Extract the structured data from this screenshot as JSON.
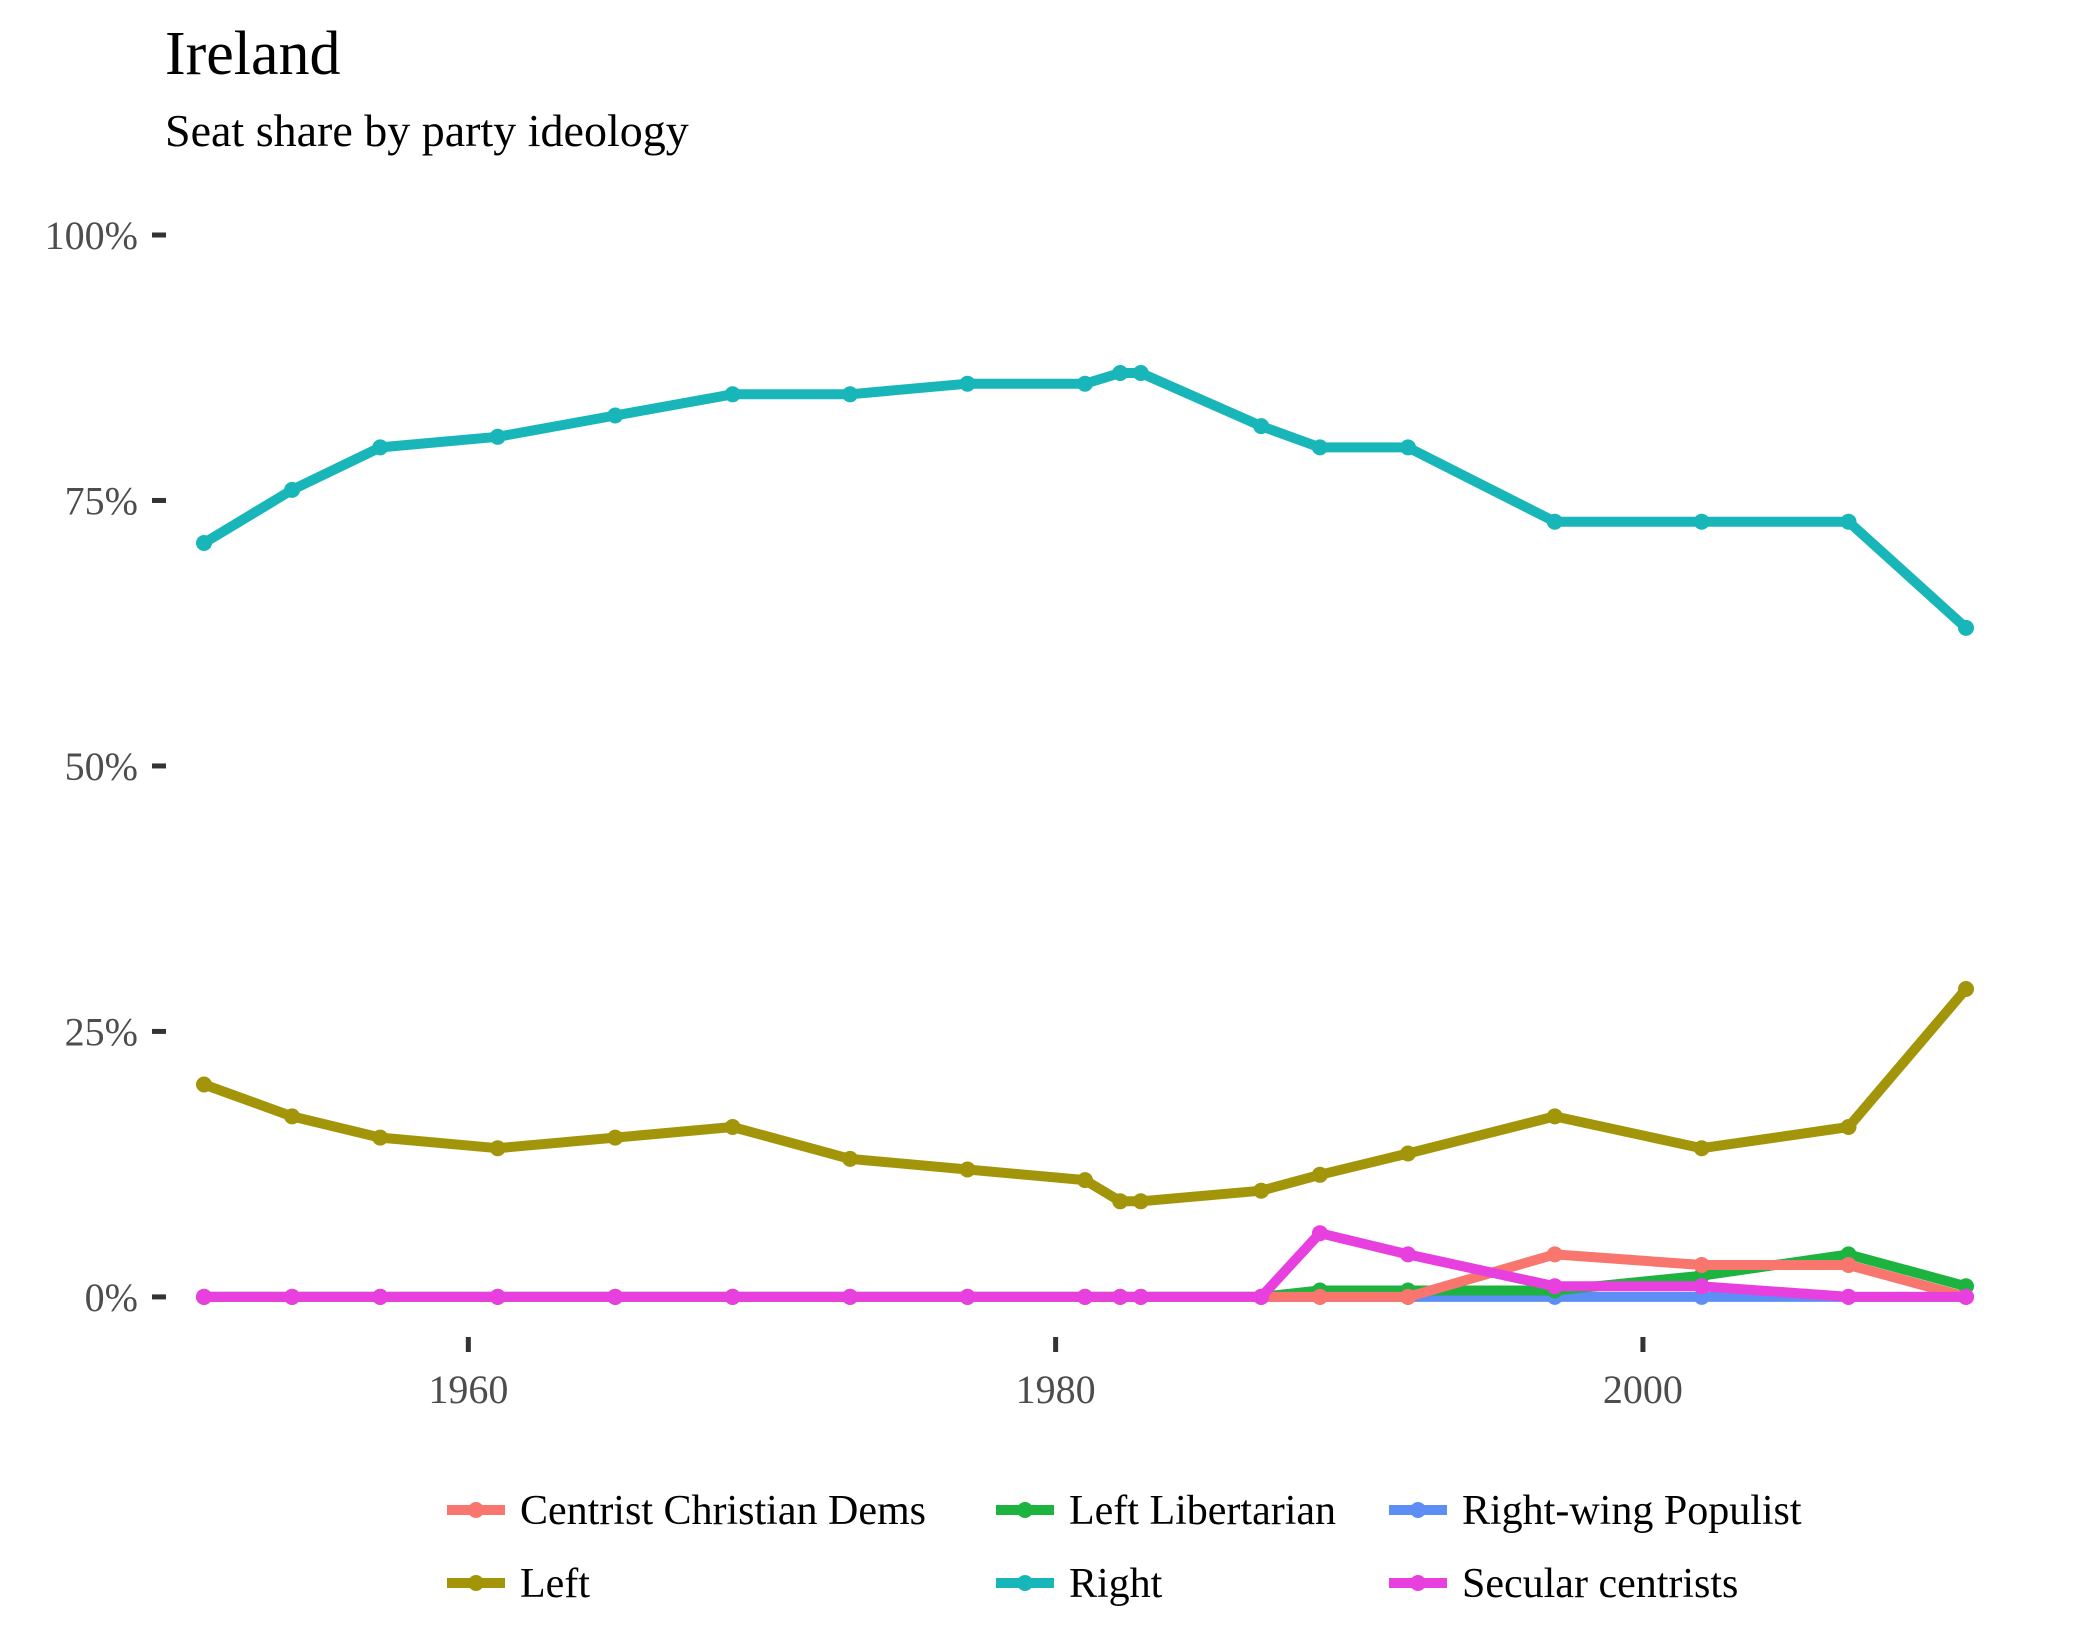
{
  "chart_data": {
    "type": "line",
    "title": "Ireland",
    "subtitle": "Seat share by party ideology",
    "xlabel": "",
    "ylabel": "",
    "x": [
      1951,
      1954,
      1957,
      1961,
      1965,
      1969,
      1973,
      1977,
      1981,
      1982.2,
      1982.9,
      1987,
      1989,
      1992,
      1997,
      2002,
      2007,
      2011
    ],
    "xlim": [
      1949.5,
      2012.5
    ],
    "ylim": [
      -0.05,
      1.0
    ],
    "x_ticks": [
      1960,
      1980,
      2000
    ],
    "x_tick_labels": [
      "1960",
      "1980",
      "2000"
    ],
    "y_ticks": [
      0,
      0.25,
      0.5,
      0.75,
      1.0
    ],
    "y_tick_labels": [
      "0%",
      "25%",
      "50%",
      "75%",
      "100%"
    ],
    "grid": false,
    "legend_position": "bottom",
    "series": [
      {
        "name": "Centrist Christian Dems",
        "color": "#F8766D",
        "values": [
          0,
          0,
          0,
          0,
          0,
          0,
          0,
          0,
          0,
          0,
          0,
          0,
          0,
          0,
          0.04,
          0.03,
          0.03,
          0
        ]
      },
      {
        "name": "Left",
        "color": "#A3950A",
        "values": [
          0.2,
          0.17,
          0.15,
          0.14,
          0.15,
          0.16,
          0.13,
          0.12,
          0.11,
          0.09,
          0.09,
          0.1,
          0.115,
          0.135,
          0.17,
          0.14,
          0.16,
          0.29
        ]
      },
      {
        "name": "Left Libertarian",
        "color": "#1CB33F",
        "values": [
          0,
          0,
          0,
          0,
          0,
          0,
          0,
          0,
          0,
          0,
          0,
          0,
          0.006,
          0.006,
          0.006,
          0.02,
          0.04,
          0.01
        ]
      },
      {
        "name": "Right",
        "color": "#19B6B9",
        "values": [
          0.71,
          0.76,
          0.8,
          0.81,
          0.83,
          0.85,
          0.85,
          0.86,
          0.86,
          0.87,
          0.87,
          0.82,
          0.8,
          0.8,
          0.73,
          0.73,
          0.73,
          0.63
        ]
      },
      {
        "name": "Right-wing Populist",
        "color": "#5C8EF5",
        "values": [
          0,
          0,
          0,
          0,
          0,
          0,
          0,
          0,
          0,
          0,
          0,
          0,
          0,
          0,
          0,
          0,
          0,
          0
        ]
      },
      {
        "name": "Secular centrists",
        "color": "#E840DE",
        "values": [
          0,
          0,
          0,
          0,
          0,
          0,
          0,
          0,
          0,
          0,
          0,
          0,
          0.06,
          0.04,
          0.01,
          0.01,
          0,
          0
        ]
      }
    ],
    "legend": [
      {
        "label": "Centrist Christian Dems",
        "color": "#F8766D"
      },
      {
        "label": "Left Libertarian",
        "color": "#1CB33F"
      },
      {
        "label": "Right-wing Populist",
        "color": "#5C8EF5"
      },
      {
        "label": "Left",
        "color": "#A3950A"
      },
      {
        "label": "Right",
        "color": "#19B6B9"
      },
      {
        "label": "Secular centrists",
        "color": "#E840DE"
      }
    ]
  }
}
